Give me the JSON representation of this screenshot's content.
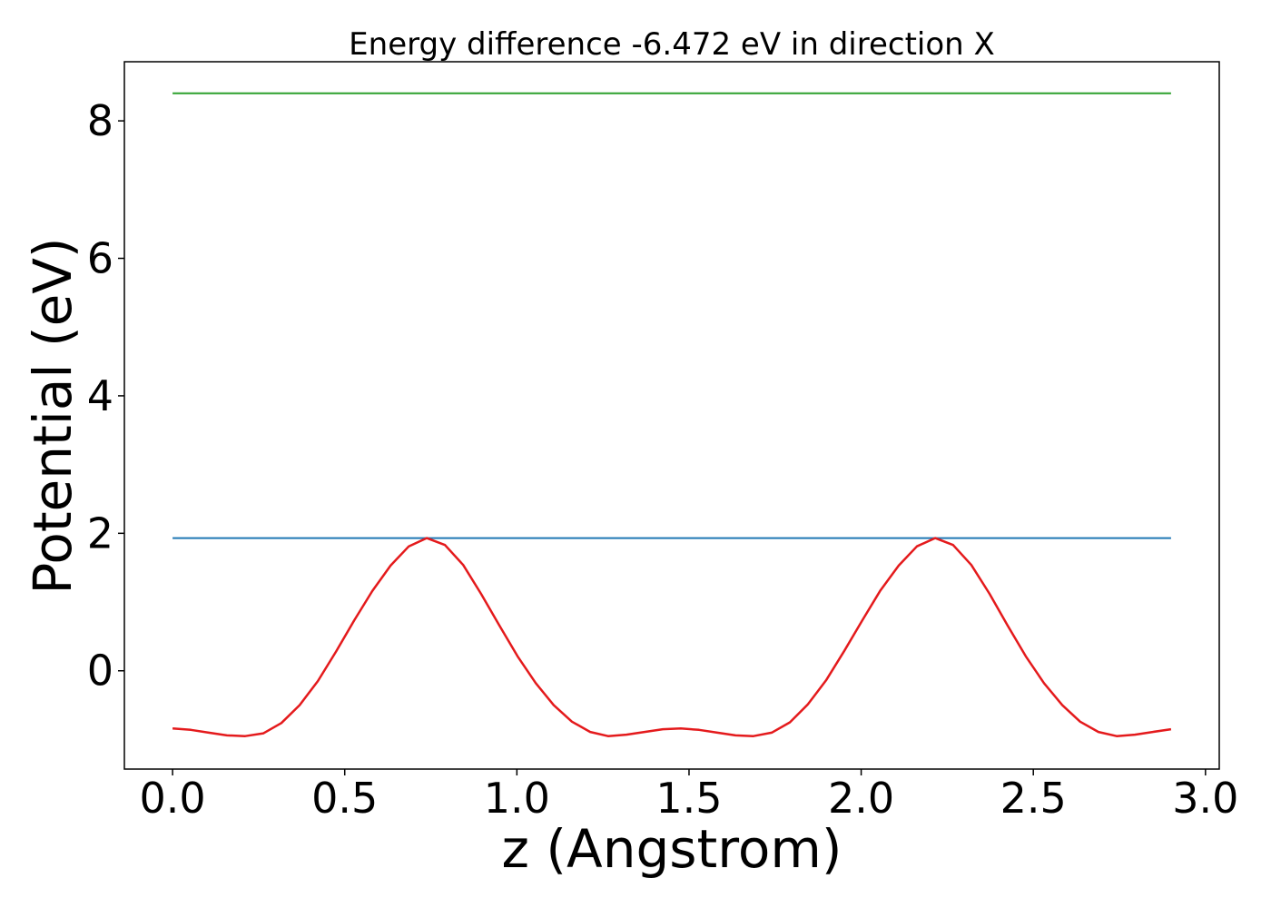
{
  "chart_data": {
    "type": "line",
    "title": "Energy difference -6.472 eV in direction X",
    "xlabel": "z (Angstrom)",
    "ylabel": "Potential (eV)",
    "xlim": [
      -0.14,
      3.04
    ],
    "ylim": [
      -1.43,
      8.86
    ],
    "xticks": [
      0.0,
      0.5,
      1.0,
      1.5,
      2.0,
      2.5,
      3.0
    ],
    "xtick_labels": [
      "0.0",
      "0.5",
      "1.0",
      "1.5",
      "2.0",
      "2.5",
      "3.0"
    ],
    "yticks": [
      0,
      2,
      4,
      6,
      8
    ],
    "ytick_labels": [
      "0",
      "2",
      "4",
      "6",
      "8"
    ],
    "grid": false,
    "series": [
      {
        "color": "#2ca02c",
        "x": [
          0.0,
          2.9
        ],
        "y": [
          8.4,
          8.4
        ]
      },
      {
        "color": "#1f77b4",
        "x": [
          0.0,
          2.9
        ],
        "y": [
          1.93,
          1.93
        ]
      },
      {
        "color": "#e41a1c",
        "x": [
          0.0,
          0.053,
          0.105,
          0.158,
          0.211,
          0.264,
          0.316,
          0.369,
          0.422,
          0.475,
          0.527,
          0.58,
          0.633,
          0.686,
          0.738,
          0.791,
          0.844,
          0.896,
          0.949,
          1.002,
          1.055,
          1.107,
          1.16,
          1.213,
          1.265,
          1.318,
          1.371,
          1.424,
          1.476,
          1.529,
          1.582,
          1.635,
          1.687,
          1.74,
          1.793,
          1.845,
          1.898,
          1.951,
          2.004,
          2.056,
          2.109,
          2.162,
          2.215,
          2.267,
          2.32,
          2.373,
          2.425,
          2.478,
          2.531,
          2.584,
          2.636,
          2.689,
          2.742,
          2.795,
          2.847,
          2.9
        ],
        "y": [
          -0.84,
          -0.86,
          -0.9,
          -0.94,
          -0.95,
          -0.91,
          -0.76,
          -0.5,
          -0.15,
          0.28,
          0.73,
          1.16,
          1.53,
          1.81,
          1.93,
          1.83,
          1.54,
          1.12,
          0.66,
          0.21,
          -0.18,
          -0.5,
          -0.74,
          -0.89,
          -0.95,
          -0.93,
          -0.89,
          -0.85,
          -0.84,
          -0.86,
          -0.9,
          -0.94,
          -0.95,
          -0.9,
          -0.75,
          -0.49,
          -0.14,
          0.29,
          0.74,
          1.17,
          1.53,
          1.81,
          1.93,
          1.83,
          1.54,
          1.12,
          0.66,
          0.21,
          -0.18,
          -0.5,
          -0.74,
          -0.89,
          -0.95,
          -0.93,
          -0.89,
          -0.85
        ]
      }
    ]
  }
}
